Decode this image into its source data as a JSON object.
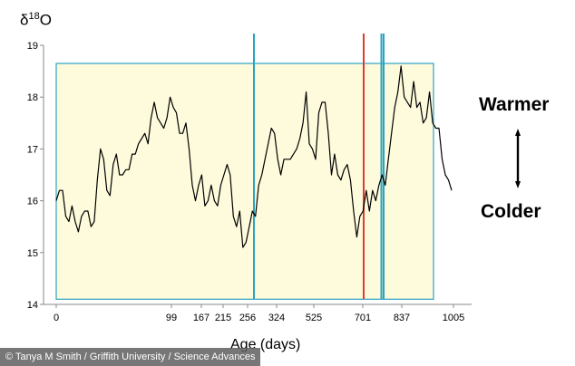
{
  "chart_data": {
    "type": "line",
    "title": "",
    "ylabel_base": "δ",
    "ylabel_sup": "18",
    "ylabel_tail": "O",
    "xlabel": "Age (days)",
    "ylim": [
      14,
      19
    ],
    "yticks": [
      14,
      15,
      16,
      17,
      18,
      19
    ],
    "xticks": [
      0,
      99,
      167,
      215,
      256,
      324,
      525,
      701,
      837,
      1005
    ],
    "series": [
      {
        "values": [
          16.0,
          16.2,
          16.2,
          15.7,
          15.6,
          15.9,
          15.6,
          15.4,
          15.7,
          15.8,
          15.8,
          15.5,
          15.6,
          16.4,
          17.0,
          16.8,
          16.2,
          16.1,
          16.7,
          16.9,
          16.5,
          16.5,
          16.6,
          16.6,
          16.9,
          16.9,
          17.1,
          17.2,
          17.3,
          17.1,
          17.6,
          17.9,
          17.6,
          17.5,
          17.4,
          17.6,
          18.0,
          17.8,
          17.7,
          17.3,
          17.3,
          17.5,
          17.0,
          16.3,
          16.0,
          16.3,
          16.5,
          15.9,
          16.0,
          16.3,
          16.0,
          15.9,
          16.3,
          16.5,
          16.7,
          16.5,
          15.7,
          15.5,
          15.8,
          15.1,
          15.2,
          15.5,
          15.8,
          15.7,
          16.3,
          16.5,
          16.8,
          17.1,
          17.4,
          17.3,
          16.8,
          16.5,
          16.8,
          16.8,
          16.8,
          16.9,
          17.0,
          17.2,
          17.5,
          18.1,
          17.1,
          17.0,
          16.8,
          17.7,
          17.9,
          17.9,
          17.3,
          16.5,
          16.9,
          16.5,
          16.4,
          16.6,
          16.7,
          16.4,
          15.8,
          15.3,
          15.7,
          15.8,
          16.2,
          15.8,
          16.2,
          16.0,
          16.3,
          16.5,
          16.3,
          16.8,
          17.3,
          17.8,
          18.1,
          18.6,
          18.0,
          17.9,
          17.8,
          18.3,
          17.8,
          17.9,
          17.5,
          17.6,
          18.1,
          17.5,
          17.4,
          17.4,
          16.8,
          16.5,
          16.4,
          16.2
        ]
      }
    ],
    "shaded_region": {
      "y_min": 14.1,
      "y_max": 18.65
    },
    "annotations": {
      "warmer": "Warmer",
      "colder": "Colder"
    },
    "colors": {
      "line": "#000000",
      "shade_fill": "#fefbdc",
      "shade_border": "#2ba3c1",
      "blue_line": "#2ba3c1",
      "red_line": "#e03a2f",
      "axis": "#8a8a8a"
    }
  },
  "credit": "© Tanya M Smith / Griffith University / Science Advances"
}
